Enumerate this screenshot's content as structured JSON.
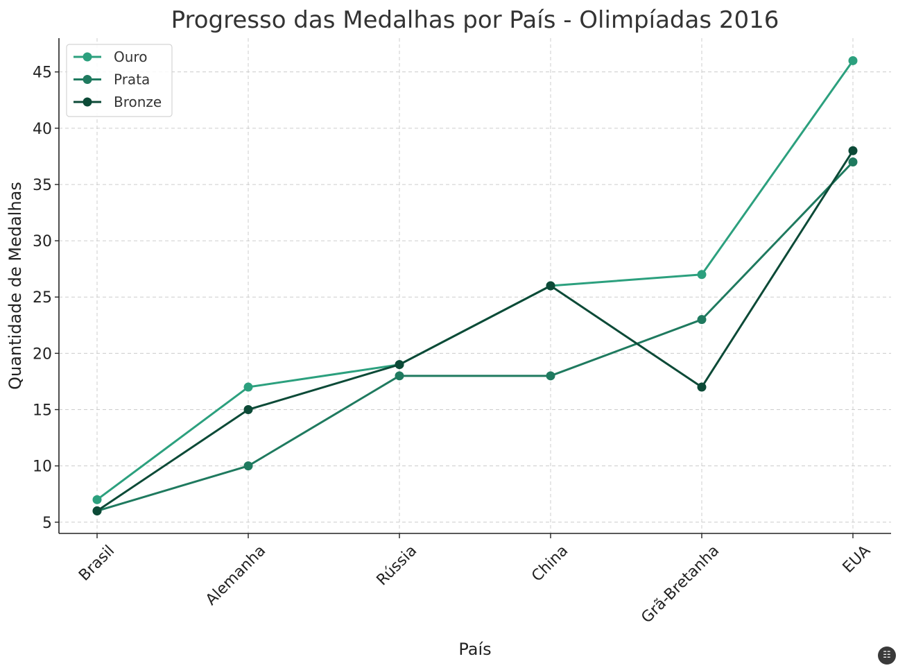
{
  "chart_data": {
    "type": "line",
    "title": "Progresso das Medalhas por País - Olimpíadas 2016",
    "xlabel": "País",
    "ylabel": "Quantidade de Medalhas",
    "categories": [
      "Brasil",
      "Alemanha",
      "Rússia",
      "China",
      "Grã-Bretanha",
      "EUA"
    ],
    "ylim": [
      4,
      48
    ],
    "yticks": [
      5,
      10,
      15,
      20,
      25,
      30,
      35,
      40,
      45
    ],
    "grid": true,
    "legend_position": "top-left",
    "series": [
      {
        "name": "Ouro",
        "color": "#2ca07e",
        "values": [
          7,
          17,
          19,
          26,
          27,
          46
        ]
      },
      {
        "name": "Prata",
        "color": "#1f7a5f",
        "values": [
          6,
          10,
          18,
          18,
          23,
          37
        ]
      },
      {
        "name": "Bronze",
        "color": "#0c4a37",
        "values": [
          6,
          15,
          19,
          26,
          17,
          38
        ]
      }
    ]
  },
  "corner_icon": "chat-icon"
}
